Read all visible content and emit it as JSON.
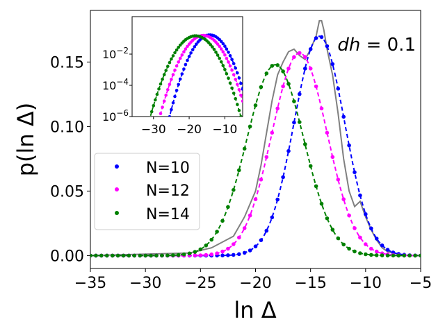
{
  "chart_data": [
    {
      "type": "scatter",
      "title": "",
      "xlabel": "ln Δ",
      "ylabel": "p(ln Δ)",
      "annotation": "dh = 0.1",
      "annotation_var": "dh",
      "annotation_rest": " = 0.1",
      "xlim": [
        -35,
        -5
      ],
      "ylim": [
        -0.01,
        0.19
      ],
      "xticks": [
        -35,
        -30,
        -25,
        -20,
        -15,
        -10,
        -5
      ],
      "xtick_labels": [
        "−35",
        "−30",
        "−25",
        "−20",
        "−15",
        "−10",
        "−5"
      ],
      "yticks": [
        0.0,
        0.05,
        0.1,
        0.15
      ],
      "ytick_labels": [
        "0.00",
        "0.05",
        "0.10",
        "0.15"
      ],
      "legend": {
        "placement": "center-left",
        "entries": [
          "N=10",
          "N=12",
          "N=14"
        ]
      },
      "series": [
        {
          "name": "N=10",
          "color": "#0000ff",
          "fit": {
            "mu": -14.2,
            "sigma": 2.3,
            "amp": 0.17
          }
        },
        {
          "name": "N=12",
          "color": "#ff00ff",
          "fit": {
            "mu": -16.0,
            "sigma": 2.5,
            "amp": 0.157
          }
        },
        {
          "name": "N=14",
          "color": "#008000",
          "fit": {
            "mu": -18.2,
            "sigma": 2.6,
            "amp": 0.148
          }
        }
      ],
      "reference_curve": {
        "color": "#808080",
        "x": [
          -35,
          -26,
          -24,
          -22,
          -21,
          -20,
          -19.5,
          -19,
          -18.5,
          -18,
          -17.5,
          -17,
          -16.5,
          -16,
          -15.5,
          -15,
          -14.5,
          -14.2,
          -14,
          -13.8,
          -13.5,
          -13,
          -12.5,
          -12,
          -11.5,
          -11,
          -10.5,
          -10,
          -9.5,
          -9,
          -8.5,
          -8,
          -7,
          -6,
          -5
        ],
        "y": [
          0,
          0.002,
          0.006,
          0.015,
          0.03,
          0.05,
          0.07,
          0.095,
          0.12,
          0.14,
          0.15,
          0.158,
          0.16,
          0.155,
          0.152,
          0.16,
          0.17,
          0.182,
          0.182,
          0.175,
          0.16,
          0.14,
          0.11,
          0.075,
          0.05,
          0.038,
          0.042,
          0.03,
          0.02,
          0.012,
          0.006,
          0.003,
          0.001,
          0.0,
          0.0
        ]
      }
    },
    {
      "type": "scatter",
      "title": "inset",
      "xlim": [
        -36,
        -5
      ],
      "ylim_log10": [
        -6,
        0.4
      ],
      "xticks": [
        -30,
        -20,
        -10
      ],
      "xtick_labels": [
        "−30",
        "−20",
        "−10"
      ],
      "yticks_log10": [
        -6,
        -4,
        -2
      ],
      "ytick_labels": [
        "10−6",
        "10−4",
        "10−2"
      ],
      "series": [
        {
          "name": "N=10",
          "color": "#0000ff",
          "fit": {
            "mu": -14.2,
            "sigma": 2.3,
            "amp": 0.17
          }
        },
        {
          "name": "N=12",
          "color": "#ff00ff",
          "fit": {
            "mu": -16.0,
            "sigma": 2.5,
            "amp": 0.157
          }
        },
        {
          "name": "N=14",
          "color": "#008000",
          "fit": {
            "mu": -18.2,
            "sigma": 2.6,
            "amp": 0.148
          }
        }
      ]
    }
  ]
}
